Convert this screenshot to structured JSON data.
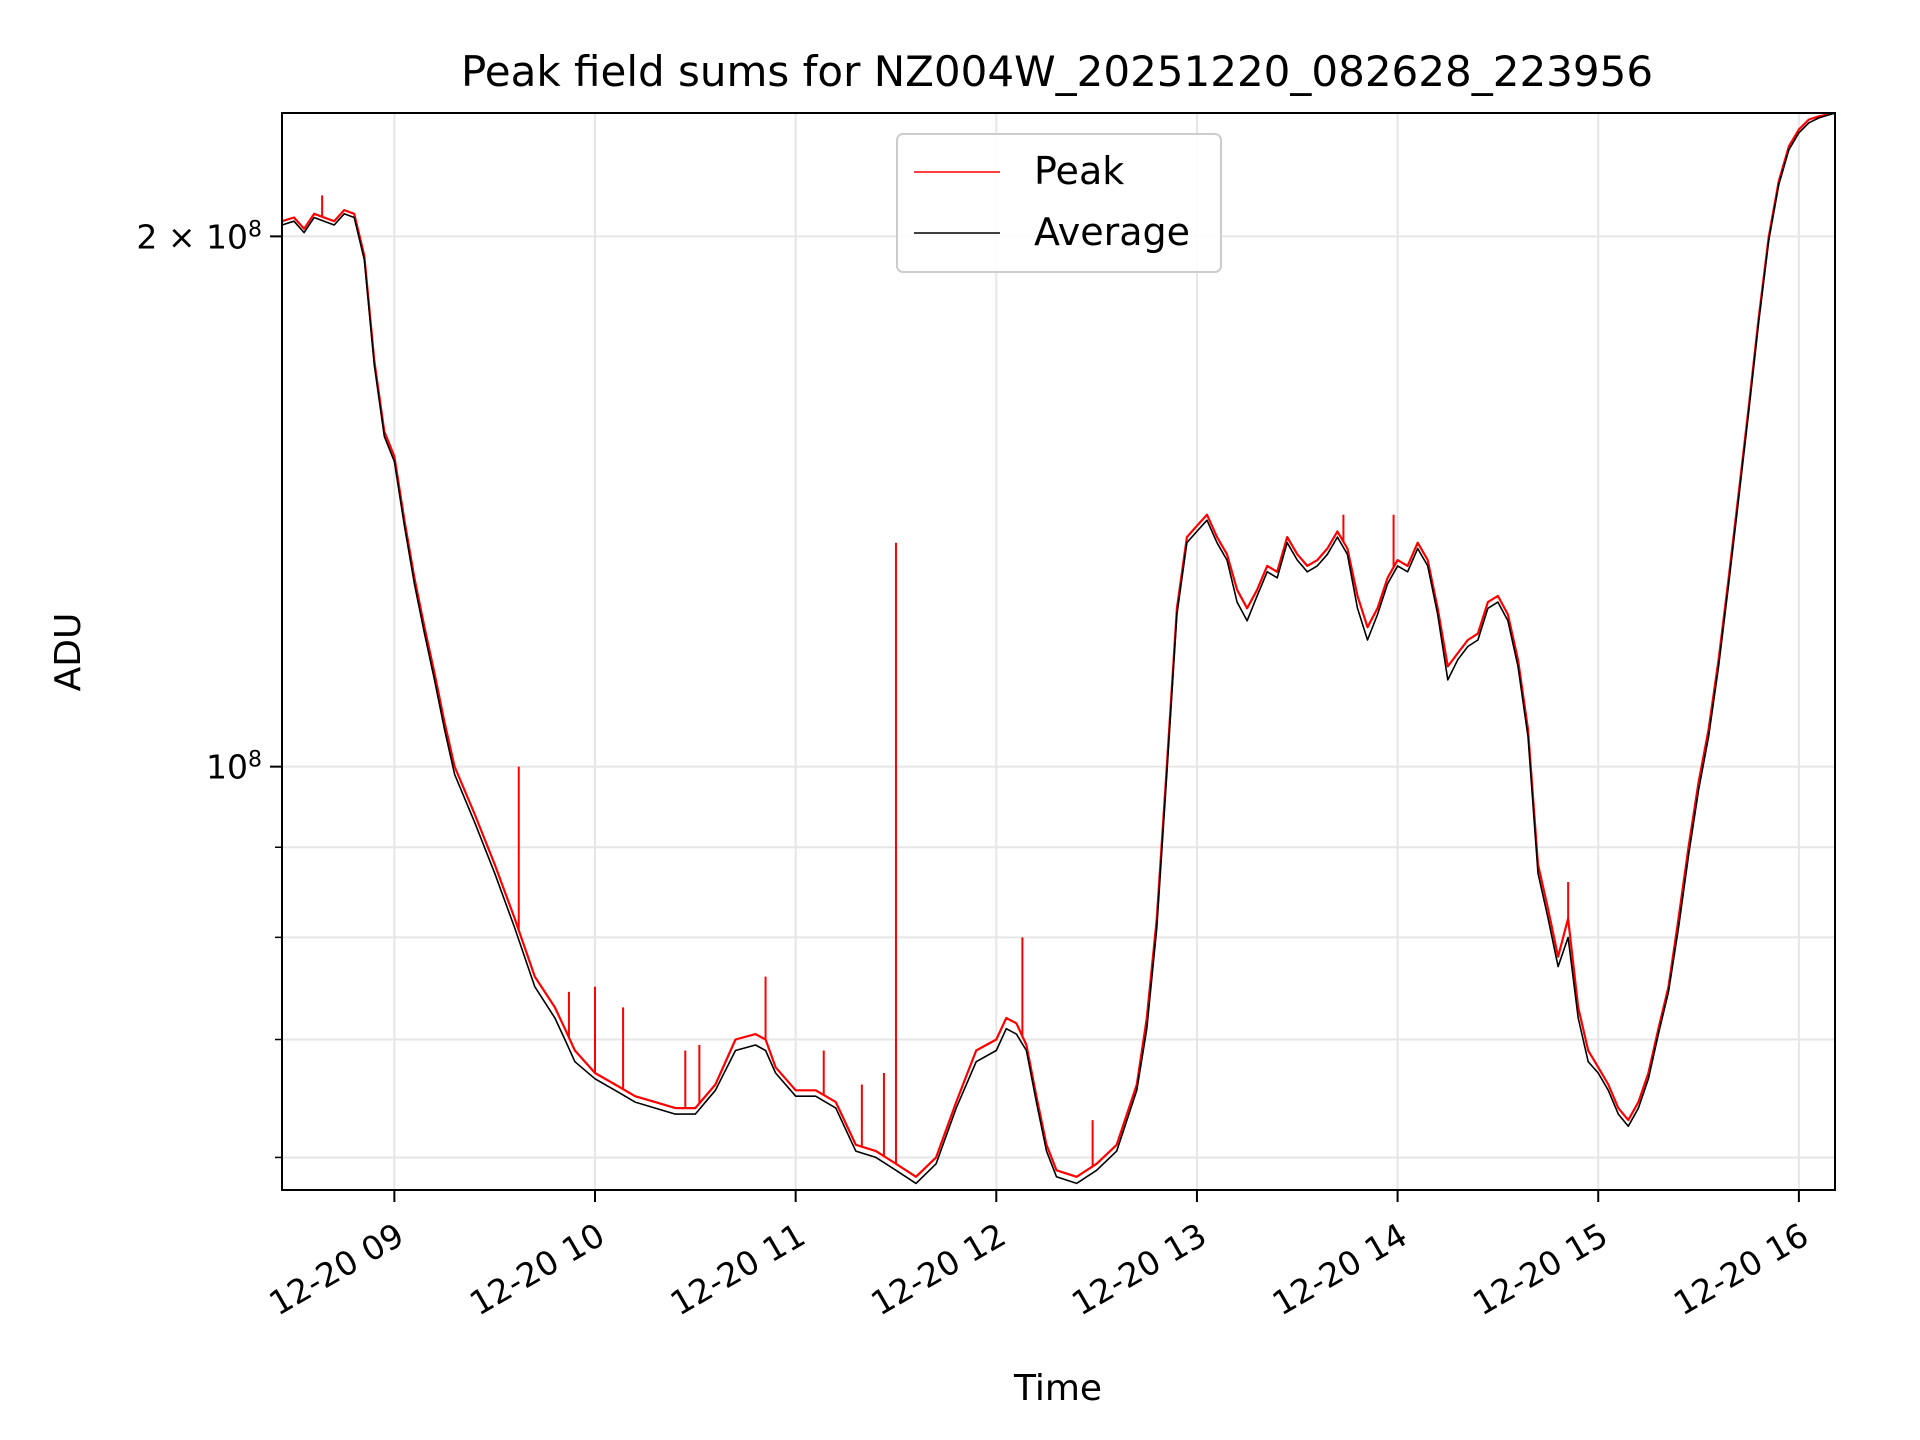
{
  "chart_data": {
    "type": "line",
    "title": "Peak field sums for NZ004W_20251220_082628_223956",
    "xlabel": "Time",
    "ylabel": "ADU",
    "yscale": "log",
    "ylim": [
      57500000,
      235000000
    ],
    "xlim_hours": [
      8.44,
      16.18
    ],
    "grid": true,
    "legend_position": "top-center",
    "x_ticks": [
      {
        "value": 9,
        "label": "12-20 09"
      },
      {
        "value": 10,
        "label": "12-20 10"
      },
      {
        "value": 11,
        "label": "12-20 11"
      },
      {
        "value": 12,
        "label": "12-20 12"
      },
      {
        "value": 13,
        "label": "12-20 13"
      },
      {
        "value": 14,
        "label": "12-20 14"
      },
      {
        "value": 15,
        "label": "12-20 15"
      },
      {
        "value": 16,
        "label": "12-20 16"
      }
    ],
    "y_major_ticks": [
      {
        "value": 100000000,
        "base": "10",
        "exp": "8",
        "mantissa": ""
      },
      {
        "value": 200000000,
        "base": "10",
        "exp": "8",
        "mantissa": "2 × "
      }
    ],
    "y_minor_ticks": [
      60000000,
      70000000,
      80000000,
      90000000
    ],
    "colors": {
      "peak": "#ff0000",
      "average": "#000000",
      "grid": "#e6e6e6"
    },
    "series": [
      {
        "name": "Peak",
        "color": "#ff0000",
        "points": [
          [
            8.44,
            204000000
          ],
          [
            8.5,
            205000000
          ],
          [
            8.55,
            202000000
          ],
          [
            8.6,
            206000000
          ],
          [
            8.65,
            205000000
          ],
          [
            8.7,
            204000000
          ],
          [
            8.75,
            207000000
          ],
          [
            8.8,
            206000000
          ],
          [
            8.85,
            195000000
          ],
          [
            8.9,
            170000000
          ],
          [
            8.95,
            155000000
          ],
          [
            9.0,
            150000000
          ],
          [
            9.05,
            138000000
          ],
          [
            9.1,
            128000000
          ],
          [
            9.15,
            120000000
          ],
          [
            9.2,
            113000000
          ],
          [
            9.25,
            106000000
          ],
          [
            9.3,
            100000000
          ],
          [
            9.4,
            94000000
          ],
          [
            9.5,
            88000000
          ],
          [
            9.6,
            82000000
          ],
          [
            9.7,
            76000000
          ],
          [
            9.8,
            73000000
          ],
          [
            9.85,
            71000000
          ],
          [
            9.9,
            69000000
          ],
          [
            10.0,
            67000000
          ],
          [
            10.1,
            66000000
          ],
          [
            10.2,
            65000000
          ],
          [
            10.3,
            64500000
          ],
          [
            10.4,
            64000000
          ],
          [
            10.5,
            64000000
          ],
          [
            10.6,
            66000000
          ],
          [
            10.7,
            70000000
          ],
          [
            10.8,
            70500000
          ],
          [
            10.85,
            70000000
          ],
          [
            10.9,
            67500000
          ],
          [
            11.0,
            65500000
          ],
          [
            11.1,
            65500000
          ],
          [
            11.2,
            64500000
          ],
          [
            11.3,
            61000000
          ],
          [
            11.4,
            60500000
          ],
          [
            11.5,
            59500000
          ],
          [
            11.6,
            58500000
          ],
          [
            11.7,
            60000000
          ],
          [
            11.8,
            64500000
          ],
          [
            11.9,
            69000000
          ],
          [
            12.0,
            70000000
          ],
          [
            12.05,
            72000000
          ],
          [
            12.1,
            71500000
          ],
          [
            12.15,
            69500000
          ],
          [
            12.2,
            65000000
          ],
          [
            12.25,
            61000000
          ],
          [
            12.3,
            59000000
          ],
          [
            12.4,
            58500000
          ],
          [
            12.5,
            59500000
          ],
          [
            12.6,
            61000000
          ],
          [
            12.7,
            66000000
          ],
          [
            12.75,
            72000000
          ],
          [
            12.8,
            82000000
          ],
          [
            12.85,
            100000000
          ],
          [
            12.9,
            123000000
          ],
          [
            12.95,
            135000000
          ],
          [
            13.0,
            137000000
          ],
          [
            13.05,
            139000000
          ],
          [
            13.1,
            135000000
          ],
          [
            13.15,
            132000000
          ],
          [
            13.2,
            126000000
          ],
          [
            13.25,
            123000000
          ],
          [
            13.3,
            126000000
          ],
          [
            13.35,
            130000000
          ],
          [
            13.4,
            129000000
          ],
          [
            13.45,
            135000000
          ],
          [
            13.5,
            132000000
          ],
          [
            13.55,
            130000000
          ],
          [
            13.6,
            131000000
          ],
          [
            13.65,
            133000000
          ],
          [
            13.7,
            136000000
          ],
          [
            13.75,
            133000000
          ],
          [
            13.8,
            125000000
          ],
          [
            13.85,
            120000000
          ],
          [
            13.9,
            123000000
          ],
          [
            13.95,
            128000000
          ],
          [
            14.0,
            131000000
          ],
          [
            14.05,
            130000000
          ],
          [
            14.1,
            134000000
          ],
          [
            14.15,
            131000000
          ],
          [
            14.2,
            123000000
          ],
          [
            14.25,
            114000000
          ],
          [
            14.3,
            116000000
          ],
          [
            14.35,
            118000000
          ],
          [
            14.4,
            119000000
          ],
          [
            14.45,
            124000000
          ],
          [
            14.5,
            125000000
          ],
          [
            14.55,
            122000000
          ],
          [
            14.6,
            115000000
          ],
          [
            14.65,
            105000000
          ],
          [
            14.7,
            88000000
          ],
          [
            14.75,
            83000000
          ],
          [
            14.8,
            78000000
          ],
          [
            14.85,
            82000000
          ],
          [
            14.9,
            73000000
          ],
          [
            14.95,
            69000000
          ],
          [
            15.0,
            67500000
          ],
          [
            15.05,
            66000000
          ],
          [
            15.1,
            64000000
          ],
          [
            15.15,
            63000000
          ],
          [
            15.2,
            64500000
          ],
          [
            15.25,
            67000000
          ],
          [
            15.3,
            71000000
          ],
          [
            15.35,
            75000000
          ],
          [
            15.4,
            82000000
          ],
          [
            15.45,
            90000000
          ],
          [
            15.5,
            98000000
          ],
          [
            15.55,
            105000000
          ],
          [
            15.6,
            115000000
          ],
          [
            15.65,
            128000000
          ],
          [
            15.7,
            143000000
          ],
          [
            15.75,
            160000000
          ],
          [
            15.8,
            180000000
          ],
          [
            15.85,
            200000000
          ],
          [
            15.9,
            215000000
          ],
          [
            15.95,
            225000000
          ],
          [
            16.0,
            230000000
          ],
          [
            16.05,
            233000000
          ],
          [
            16.1,
            234000000
          ],
          [
            16.18,
            235000000
          ]
        ],
        "spikes": [
          [
            8.64,
            211000000
          ],
          [
            9.62,
            100000000
          ],
          [
            9.87,
            74500000
          ],
          [
            10.0,
            75000000
          ],
          [
            10.14,
            73000000
          ],
          [
            10.45,
            69000000
          ],
          [
            10.52,
            69500000
          ],
          [
            10.85,
            76000000
          ],
          [
            11.14,
            69000000
          ],
          [
            11.33,
            66000000
          ],
          [
            11.44,
            67000000
          ],
          [
            11.5,
            134000000
          ],
          [
            12.13,
            80000000
          ],
          [
            12.48,
            63000000
          ],
          [
            13.73,
            139000000
          ],
          [
            13.98,
            139000000
          ],
          [
            14.85,
            86000000
          ]
        ]
      },
      {
        "name": "Average",
        "color": "#000000",
        "points": [
          [
            8.44,
            203000000
          ],
          [
            8.5,
            204000000
          ],
          [
            8.55,
            201000000
          ],
          [
            8.6,
            205000000
          ],
          [
            8.65,
            204000000
          ],
          [
            8.7,
            203000000
          ],
          [
            8.75,
            206000000
          ],
          [
            8.8,
            205000000
          ],
          [
            8.85,
            194000000
          ],
          [
            8.9,
            169000000
          ],
          [
            8.95,
            154000000
          ],
          [
            9.0,
            149000000
          ],
          [
            9.05,
            137000000
          ],
          [
            9.1,
            127000000
          ],
          [
            9.15,
            119000000
          ],
          [
            9.2,
            112000000
          ],
          [
            9.25,
            105000000
          ],
          [
            9.3,
            99000000
          ],
          [
            9.4,
            93000000
          ],
          [
            9.5,
            87000000
          ],
          [
            9.6,
            81000000
          ],
          [
            9.7,
            75000000
          ],
          [
            9.8,
            72000000
          ],
          [
            9.85,
            70000000
          ],
          [
            9.9,
            68000000
          ],
          [
            10.0,
            66500000
          ],
          [
            10.1,
            65500000
          ],
          [
            10.2,
            64500000
          ],
          [
            10.3,
            64000000
          ],
          [
            10.4,
            63500000
          ],
          [
            10.5,
            63500000
          ],
          [
            10.6,
            65500000
          ],
          [
            10.7,
            69000000
          ],
          [
            10.8,
            69500000
          ],
          [
            10.85,
            69000000
          ],
          [
            10.9,
            67000000
          ],
          [
            11.0,
            65000000
          ],
          [
            11.1,
            65000000
          ],
          [
            11.2,
            64000000
          ],
          [
            11.3,
            60500000
          ],
          [
            11.4,
            60000000
          ],
          [
            11.5,
            59000000
          ],
          [
            11.6,
            58000000
          ],
          [
            11.7,
            59500000
          ],
          [
            11.8,
            64000000
          ],
          [
            11.9,
            68000000
          ],
          [
            12.0,
            69000000
          ],
          [
            12.05,
            71000000
          ],
          [
            12.1,
            70500000
          ],
          [
            12.15,
            69000000
          ],
          [
            12.2,
            64500000
          ],
          [
            12.25,
            60500000
          ],
          [
            12.3,
            58500000
          ],
          [
            12.4,
            58000000
          ],
          [
            12.5,
            59000000
          ],
          [
            12.6,
            60500000
          ],
          [
            12.7,
            65500000
          ],
          [
            12.75,
            71000000
          ],
          [
            12.8,
            81000000
          ],
          [
            12.85,
            99000000
          ],
          [
            12.9,
            122000000
          ],
          [
            12.95,
            134000000
          ],
          [
            13.0,
            136000000
          ],
          [
            13.05,
            138000000
          ],
          [
            13.1,
            134000000
          ],
          [
            13.15,
            131000000
          ],
          [
            13.2,
            124000000
          ],
          [
            13.25,
            121000000
          ],
          [
            13.3,
            125000000
          ],
          [
            13.35,
            129000000
          ],
          [
            13.4,
            128000000
          ],
          [
            13.45,
            134000000
          ],
          [
            13.5,
            131000000
          ],
          [
            13.55,
            129000000
          ],
          [
            13.6,
            130000000
          ],
          [
            13.65,
            132000000
          ],
          [
            13.7,
            135000000
          ],
          [
            13.75,
            132000000
          ],
          [
            13.8,
            123000000
          ],
          [
            13.85,
            118000000
          ],
          [
            13.9,
            122000000
          ],
          [
            13.95,
            127000000
          ],
          [
            14.0,
            130000000
          ],
          [
            14.05,
            129000000
          ],
          [
            14.1,
            133000000
          ],
          [
            14.15,
            130000000
          ],
          [
            14.2,
            122000000
          ],
          [
            14.25,
            112000000
          ],
          [
            14.3,
            115000000
          ],
          [
            14.35,
            117000000
          ],
          [
            14.4,
            118000000
          ],
          [
            14.45,
            123000000
          ],
          [
            14.5,
            124000000
          ],
          [
            14.55,
            121000000
          ],
          [
            14.6,
            114000000
          ],
          [
            14.65,
            104000000
          ],
          [
            14.7,
            87000000
          ],
          [
            14.75,
            82000000
          ],
          [
            14.8,
            77000000
          ],
          [
            14.85,
            80000000
          ],
          [
            14.9,
            72000000
          ],
          [
            14.95,
            68000000
          ],
          [
            15.0,
            67000000
          ],
          [
            15.05,
            65500000
          ],
          [
            15.1,
            63500000
          ],
          [
            15.15,
            62500000
          ],
          [
            15.2,
            64000000
          ],
          [
            15.25,
            66500000
          ],
          [
            15.3,
            70500000
          ],
          [
            15.35,
            74500000
          ],
          [
            15.4,
            81000000
          ],
          [
            15.45,
            89000000
          ],
          [
            15.5,
            97000000
          ],
          [
            15.55,
            104000000
          ],
          [
            15.6,
            114000000
          ],
          [
            15.65,
            127000000
          ],
          [
            15.7,
            142000000
          ],
          [
            15.75,
            159000000
          ],
          [
            15.8,
            179000000
          ],
          [
            15.85,
            199000000
          ],
          [
            15.9,
            214000000
          ],
          [
            15.95,
            224000000
          ],
          [
            16.0,
            229000000
          ],
          [
            16.05,
            232000000
          ],
          [
            16.1,
            233500000
          ],
          [
            16.18,
            235000000
          ]
        ]
      }
    ]
  }
}
